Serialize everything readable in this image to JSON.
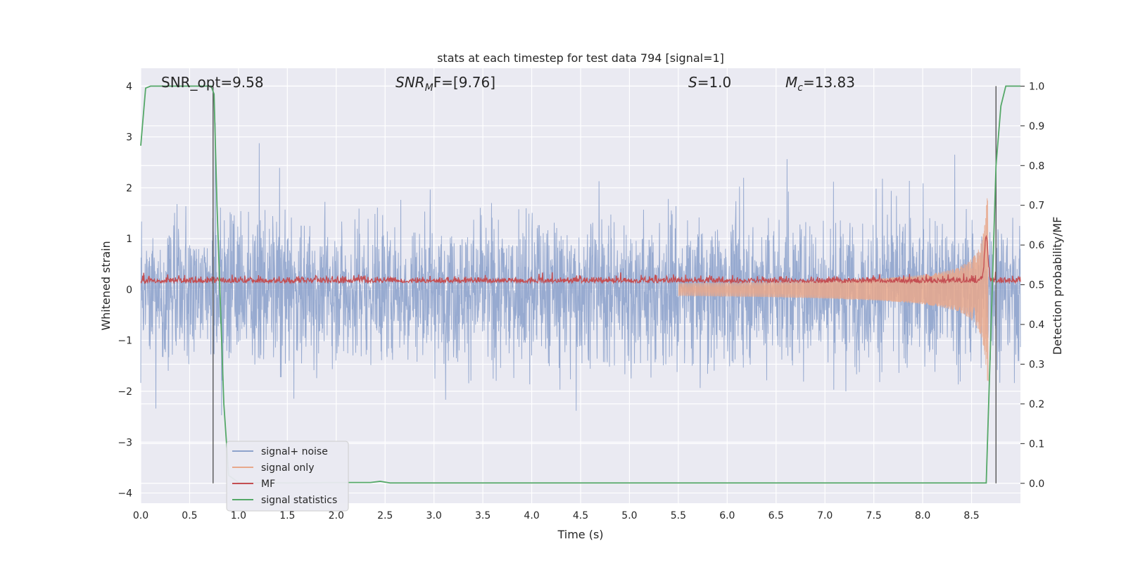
{
  "chart_data": {
    "type": "line",
    "title": "stats at each timestep for test data 794 [signal=1]",
    "xlabel": "Time (s)",
    "ylabel": "Whitened strain",
    "y2label": "Detection probability/MF",
    "xlim": [
      0.0,
      9.0
    ],
    "ylim": [
      -4.2,
      4.35
    ],
    "y2lim": [
      -0.05,
      1.045
    ],
    "xticks": [
      "0.0",
      "0.5",
      "1.0",
      "1.5",
      "2.0",
      "2.5",
      "3.0",
      "3.5",
      "4.0",
      "4.5",
      "5.0",
      "5.5",
      "6.0",
      "6.5",
      "7.0",
      "7.5",
      "8.0",
      "8.5"
    ],
    "yticks": [
      "4",
      "3",
      "2",
      "1",
      "0",
      "−1",
      "−2",
      "−3",
      "−4"
    ],
    "y2ticks": [
      "1.0",
      "0.9",
      "0.8",
      "0.7",
      "0.6",
      "0.5",
      "0.4",
      "0.3",
      "0.2",
      "0.1",
      "0.0"
    ],
    "grid": true,
    "legend_position": "lower-left",
    "annotations": [
      {
        "text": "SNR_opt=9.58",
        "x": 0.2
      },
      {
        "main": "SNR",
        "sub": "M",
        "rest": "F=[9.76]",
        "x": 2.6
      },
      {
        "main": "S",
        "sub": "",
        "rest": "=1.0",
        "x": 5.6
      },
      {
        "main": "M",
        "sub": "c",
        "rest": "=13.83",
        "x": 6.6
      }
    ],
    "series": [
      {
        "name": "signal+ noise",
        "color": "#8ea3cc",
        "axis": "left",
        "amplitude_range": [
          -3.8,
          3.8
        ]
      },
      {
        "name": "signal only",
        "color": "#e8a88c",
        "axis": "left",
        "chirp_start": 5.5,
        "chirp_peak": 8.65,
        "peak_amplitude": 1.8
      },
      {
        "name": "MF",
        "color": "#c44e52",
        "axis": "right",
        "baseline": 0.505,
        "peak": {
          "x": 8.65,
          "y": 0.62
        }
      },
      {
        "name": "signal statistics",
        "color": "#55a868",
        "axis": "right",
        "x": [
          0.0,
          0.05,
          0.1,
          0.2,
          0.4,
          0.6,
          0.72,
          0.75,
          0.78,
          0.85,
          0.9,
          1.0,
          1.5,
          2.0,
          2.35,
          2.45,
          2.55,
          3.0,
          4.5,
          6.0,
          8.0,
          8.65,
          8.7,
          8.75,
          8.8,
          8.85,
          9.0
        ],
        "y": [
          0.85,
          0.995,
          1.0,
          1.0,
          1.0,
          1.0,
          1.0,
          0.98,
          0.7,
          0.2,
          0.02,
          0.002,
          0.001,
          0.002,
          0.002,
          0.005,
          0.001,
          0.001,
          0.001,
          0.001,
          0.001,
          0.001,
          0.4,
          0.8,
          0.95,
          1.0,
          1.0
        ]
      }
    ],
    "vertical_lines": [
      0.74,
      8.75
    ]
  }
}
